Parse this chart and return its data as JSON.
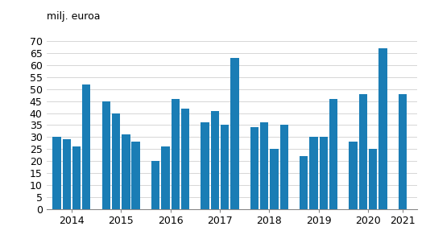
{
  "values": [
    30,
    29,
    26,
    52,
    45,
    40,
    31,
    28,
    20,
    26,
    46,
    42,
    36,
    41,
    35,
    63,
    34,
    36,
    25,
    35,
    22,
    30,
    30,
    46,
    28,
    48,
    25,
    67,
    48
  ],
  "x_positions": [
    0,
    1,
    2,
    3,
    5,
    6,
    7,
    8,
    10,
    11,
    12,
    13,
    15,
    16,
    17,
    18,
    20,
    21,
    22,
    23,
    25,
    26,
    27,
    28,
    30,
    31,
    32,
    33,
    35
  ],
  "year_labels": [
    "2014",
    "2015",
    "2016",
    "2017",
    "2018",
    "2019",
    "2020",
    "2021"
  ],
  "year_tick_positions": [
    1.5,
    6.5,
    11.5,
    16.5,
    21.5,
    26.5,
    31.5,
    35.0
  ],
  "bar_color": "#1a7db5",
  "ylabel": "milj. euroa",
  "ylim": [
    0,
    75
  ],
  "yticks": [
    0,
    5,
    10,
    15,
    20,
    25,
    30,
    35,
    40,
    45,
    50,
    55,
    60,
    65,
    70
  ],
  "ylabel_fontsize": 9,
  "tick_fontsize": 9
}
